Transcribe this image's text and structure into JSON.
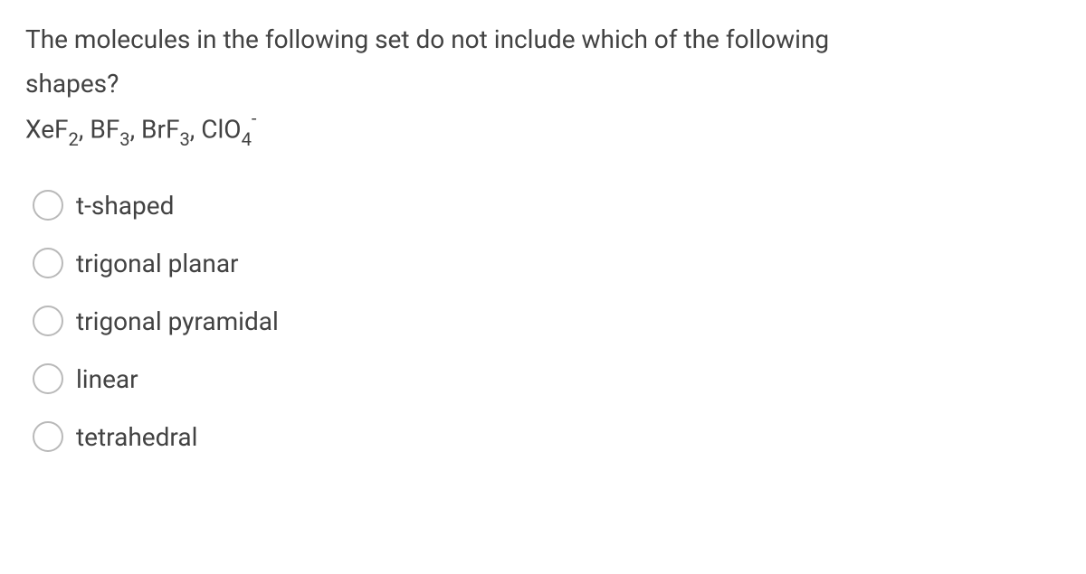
{
  "question": {
    "line1": "The molecules in the following set do not include which of the following",
    "line2": "shapes?",
    "formula_parts": {
      "mol1_base": "XeF",
      "mol1_sub": "2",
      "sep1": ", ",
      "mol2_base": "BF",
      "mol2_sub": "3",
      "sep2": ", ",
      "mol3_base": "BrF",
      "mol3_sub": "3",
      "sep3": ", ",
      "mol4_base": "ClO",
      "mol4_sub": "4",
      "mol4_charge": "-"
    }
  },
  "options": [
    {
      "label": "t-shaped"
    },
    {
      "label": "trigonal planar"
    },
    {
      "label": "trigonal pyramidal"
    },
    {
      "label": "linear"
    },
    {
      "label": "tetrahedral"
    }
  ],
  "colors": {
    "text": "#424242",
    "radio_border": "#b9b9b9",
    "background": "#ffffff"
  },
  "typography": {
    "font_size_pt": 21,
    "sub_scale": 0.72
  }
}
